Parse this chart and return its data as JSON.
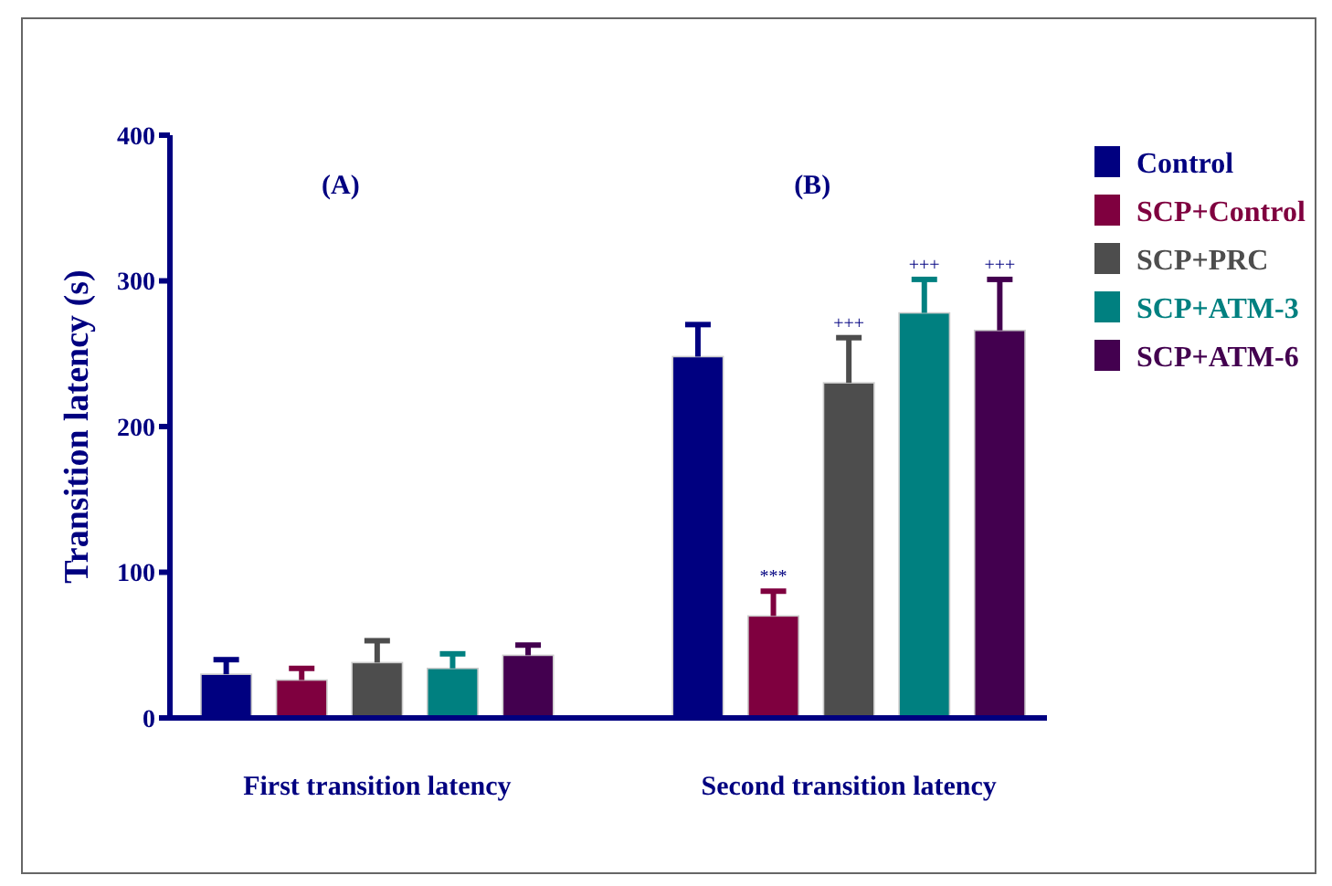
{
  "chart_data": {
    "type": "bar",
    "ylabel": "Transition latency (s)",
    "categories": [
      "First transition latency",
      "Second transition latency"
    ],
    "ylim": [
      0,
      400
    ],
    "yticks": [
      0,
      100,
      200,
      300,
      400
    ],
    "legend": "top right",
    "series": [
      {
        "name": "Control",
        "color": "#000080",
        "values": [
          30,
          248
        ],
        "errors": [
          [
            30,
            40
          ],
          [
            248,
            270
          ]
        ]
      },
      {
        "name": "SCP+Control",
        "color": "#7f003f",
        "values": [
          26,
          70
        ],
        "errors": [
          [
            26,
            34
          ],
          [
            70,
            87
          ]
        ]
      },
      {
        "name": "SCP+PRC",
        "color": "#4d4d4d",
        "values": [
          38,
          230
        ],
        "errors": [
          [
            38,
            53
          ],
          [
            230,
            261
          ]
        ]
      },
      {
        "name": "SCP+ATM-3",
        "color": "#008080",
        "values": [
          34,
          278
        ],
        "errors": [
          [
            34,
            44
          ],
          [
            278,
            301
          ]
        ]
      },
      {
        "name": "SCP+ATM-6",
        "color": "#43004f",
        "values": [
          43,
          266
        ],
        "errors": [
          [
            43,
            50
          ],
          [
            266,
            301
          ]
        ]
      }
    ],
    "annotations": [
      "(A)",
      "(B)",
      "***",
      "+++",
      "+++",
      "+++"
    ]
  }
}
